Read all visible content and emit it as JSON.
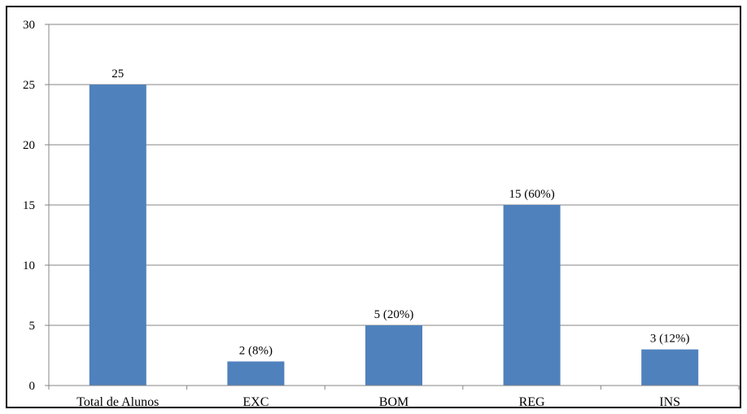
{
  "chart_data": {
    "type": "bar",
    "categories": [
      "Total de Alunos",
      "EXC",
      "BOM",
      "REG",
      "INS"
    ],
    "values": [
      25,
      2,
      5,
      15,
      3
    ],
    "data_labels": [
      "25",
      "2 (8%)",
      "5 (20%)",
      "15 (60%)",
      "3 (12%)"
    ],
    "title": "",
    "xlabel": "",
    "ylabel": "",
    "ylim": [
      0,
      30
    ],
    "yticks": [
      "0",
      "5",
      "10",
      "15",
      "20",
      "25",
      "30"
    ],
    "grid": true,
    "legend": "none",
    "bar_color": "#4f81bd",
    "grid_color": "#868686"
  }
}
